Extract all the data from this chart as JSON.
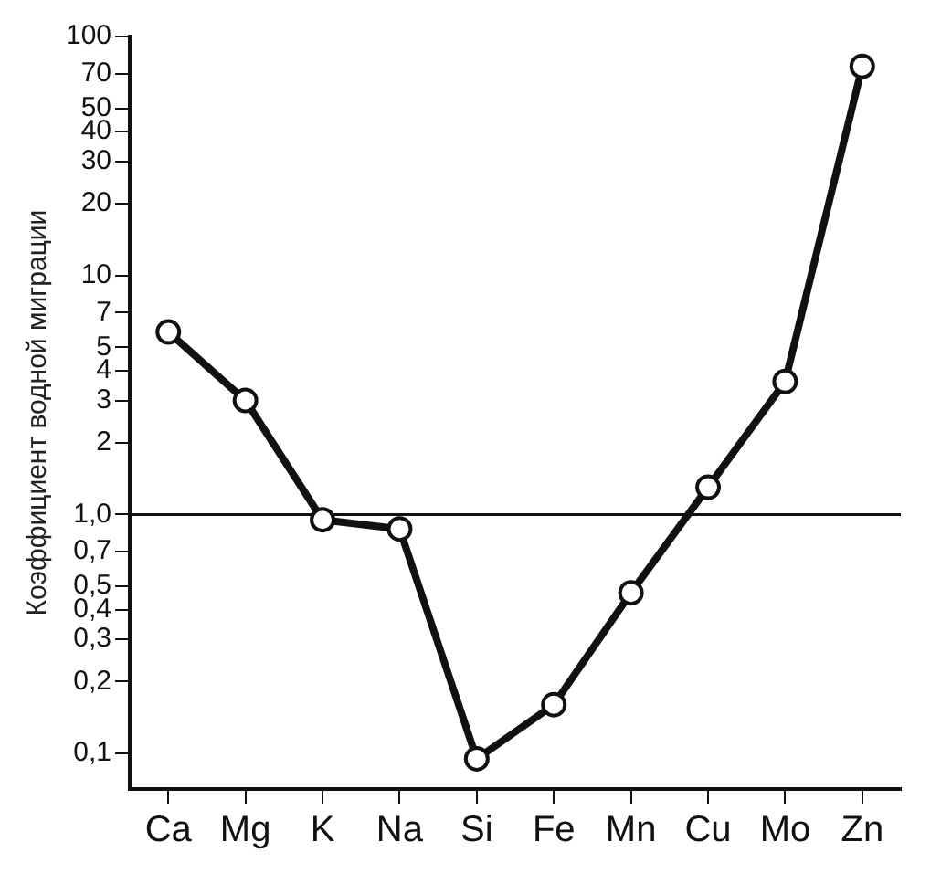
{
  "chart_data": {
    "type": "line",
    "ylabel": "Коэффициент водной миграции",
    "categories": [
      "Ca",
      "Mg",
      "K",
      "Na",
      "Si",
      "Fe",
      "Mn",
      "Cu",
      "Mo",
      "Zn"
    ],
    "series": [
      {
        "color": "#111111",
        "values": [
          5.8,
          3.0,
          0.95,
          0.87,
          0.095,
          0.16,
          0.47,
          1.3,
          3.6,
          75
        ]
      }
    ],
    "log": "y",
    "ylim": [
      0.071,
      100
    ],
    "yticks": [
      {
        "value": 0.1,
        "label": "0,1"
      },
      {
        "value": 0.2,
        "label": "0,2"
      },
      {
        "value": 0.3,
        "label": "0,3"
      },
      {
        "value": 0.4,
        "label": "0,4"
      },
      {
        "value": 0.5,
        "label": "0,5"
      },
      {
        "value": 0.7,
        "label": "0,7"
      },
      {
        "value": 1,
        "label": "1,0"
      },
      2,
      3,
      4,
      5,
      7,
      10,
      20,
      30,
      40,
      50,
      70,
      100
    ],
    "ref_lines": [
      {
        "axis": "y",
        "value": 1,
        "color": "#111111"
      }
    ],
    "grid": false,
    "legend": false,
    "marker": "circle",
    "line_style": "solid"
  }
}
